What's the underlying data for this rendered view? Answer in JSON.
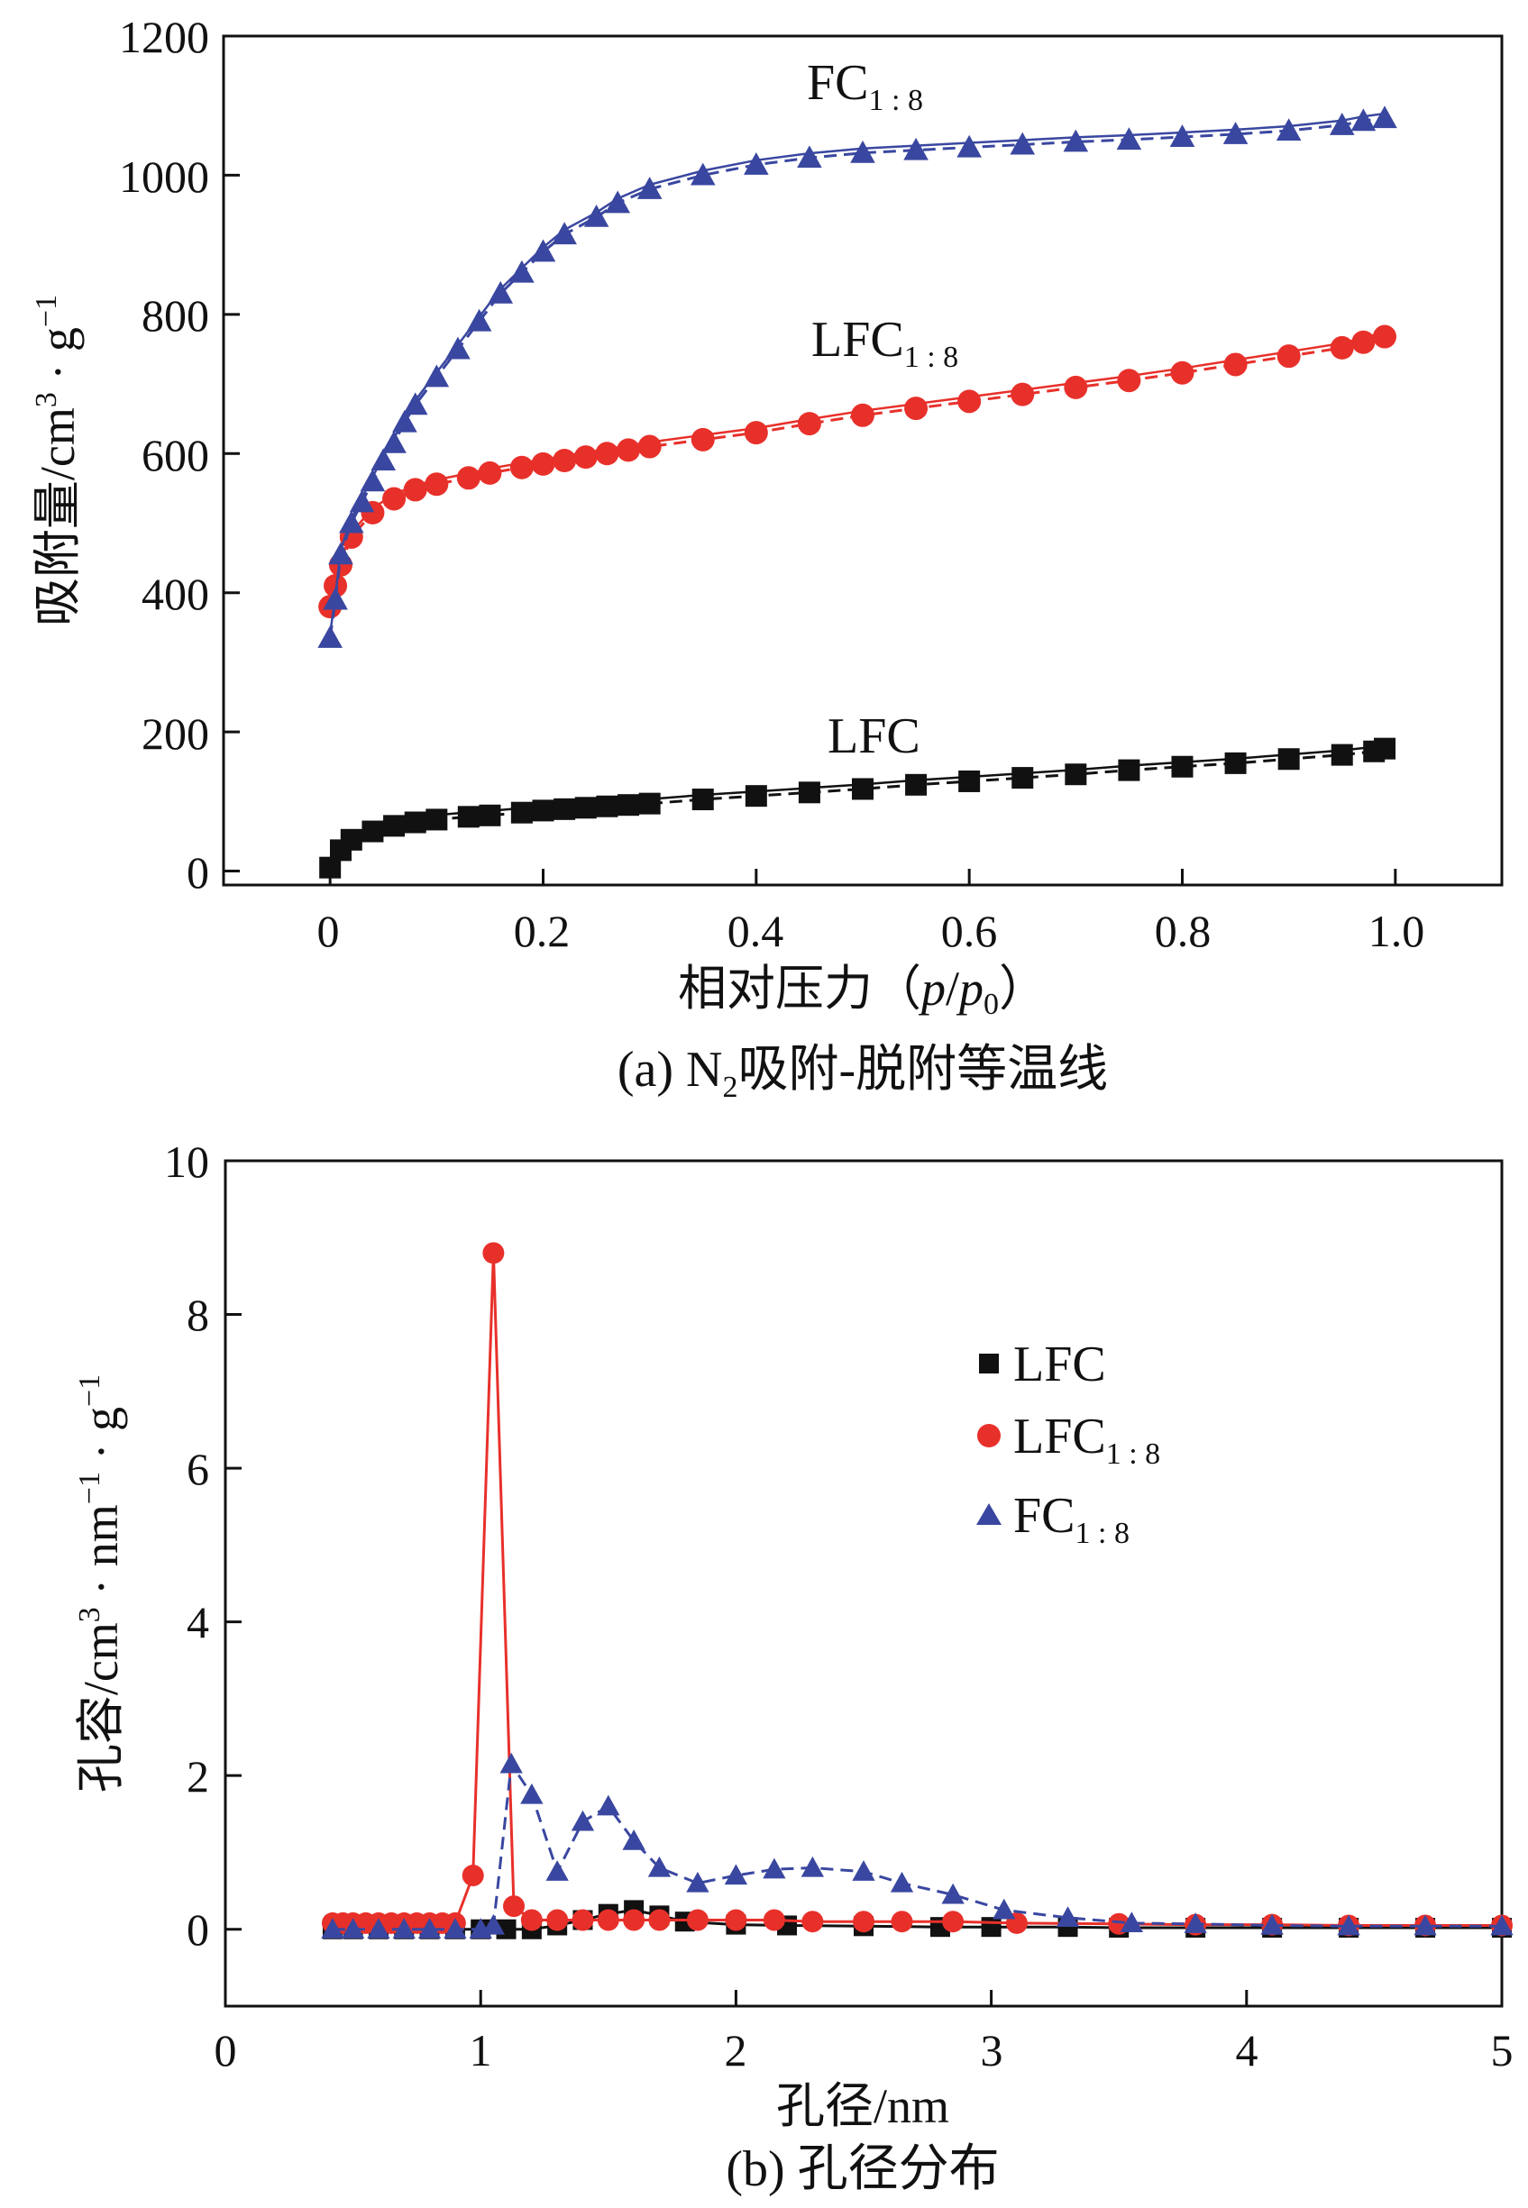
{
  "chart_data": [
    {
      "type": "line",
      "panel": "a",
      "caption_prefix": "(a) N",
      "caption_sub": "2",
      "caption_rest": "吸附-脱附等温线",
      "xlabel_prefix": "相对压力（",
      "xlabel_var1": "p",
      "xlabel_slash": "/",
      "xlabel_var2": "p",
      "xlabel_sub": "0",
      "xlabel_suffix": "）",
      "ylabel_main": "吸附量/cm",
      "ylabel_sup1": "3",
      "ylabel_mid": " · g",
      "ylabel_sup2": "−1",
      "xlim": [
        -0.1,
        1.1
      ],
      "ylim": [
        -20,
        1200
      ],
      "xticks": [
        "0",
        "0.2",
        "0.4",
        "0.6",
        "0.8",
        "1.0"
      ],
      "yticks": [
        "0",
        "200",
        "400",
        "600",
        "800",
        "1000",
        "1200"
      ],
      "series": [
        {
          "name": "LFC",
          "label_main": "LFC",
          "label_sub": "",
          "color": "#111111",
          "marker": "square",
          "x": [
            0.0,
            0.01,
            0.02,
            0.04,
            0.06,
            0.08,
            0.1,
            0.13,
            0.15,
            0.18,
            0.2,
            0.22,
            0.24,
            0.26,
            0.28,
            0.3,
            0.35,
            0.4,
            0.45,
            0.5,
            0.55,
            0.6,
            0.65,
            0.7,
            0.75,
            0.8,
            0.85,
            0.9,
            0.95,
            0.98,
            0.99
          ],
          "y": [
            5,
            30,
            45,
            57,
            65,
            70,
            74,
            78,
            80,
            84,
            87,
            89,
            91,
            93,
            95,
            97,
            103,
            108,
            113,
            118,
            124,
            129,
            134,
            139,
            145,
            150,
            155,
            161,
            167,
            172,
            176
          ]
        },
        {
          "name": "LFC1:8",
          "label_main": "LFC",
          "label_sub": "1 : 8",
          "color": "#e8302a",
          "marker": "circle",
          "x": [
            0.0,
            0.005,
            0.01,
            0.02,
            0.04,
            0.06,
            0.08,
            0.1,
            0.13,
            0.15,
            0.18,
            0.2,
            0.22,
            0.24,
            0.26,
            0.28,
            0.3,
            0.35,
            0.4,
            0.45,
            0.5,
            0.55,
            0.6,
            0.65,
            0.7,
            0.75,
            0.8,
            0.85,
            0.9,
            0.95,
            0.97,
            0.99
          ],
          "y": [
            380,
            410,
            440,
            480,
            515,
            535,
            548,
            556,
            565,
            572,
            580,
            585,
            590,
            595,
            600,
            605,
            610,
            620,
            630,
            643,
            655,
            665,
            675,
            685,
            695,
            705,
            716,
            728,
            740,
            752,
            760,
            768
          ]
        },
        {
          "name": "FC1:8",
          "label_main": "FC",
          "label_sub": "1 : 8",
          "color": "#3a47a0",
          "marker": "triangle",
          "x": [
            0.0,
            0.005,
            0.01,
            0.02,
            0.03,
            0.04,
            0.05,
            0.06,
            0.07,
            0.08,
            0.1,
            0.12,
            0.14,
            0.16,
            0.18,
            0.2,
            0.22,
            0.25,
            0.27,
            0.3,
            0.35,
            0.4,
            0.45,
            0.5,
            0.55,
            0.6,
            0.65,
            0.7,
            0.75,
            0.8,
            0.85,
            0.9,
            0.95,
            0.97,
            0.99
          ],
          "y": [
            335,
            390,
            455,
            500,
            530,
            560,
            590,
            615,
            645,
            670,
            710,
            750,
            790,
            830,
            860,
            890,
            915,
            940,
            960,
            980,
            1000,
            1015,
            1025,
            1032,
            1036,
            1040,
            1044,
            1048,
            1051,
            1055,
            1059,
            1064,
            1072,
            1078,
            1082
          ]
        }
      ],
      "annotations": [
        "FC1:8",
        "LFC1:8",
        "LFC"
      ]
    },
    {
      "type": "line",
      "panel": "b",
      "caption": "(b) 孔径分布",
      "xlabel": "孔径/nm",
      "ylabel_main": "孔容/cm",
      "ylabel_sup1": "3",
      "ylabel_mid": " · nm",
      "ylabel_sup2": "−1",
      "ylabel_mid2": " · g",
      "ylabel_sup3": "−1",
      "xlim": [
        0,
        5
      ],
      "ylim": [
        -1,
        10
      ],
      "xticks": [
        "0",
        "1",
        "2",
        "3",
        "4",
        "5"
      ],
      "yticks": [
        "0",
        "2",
        "4",
        "6",
        "8",
        "10"
      ],
      "legend_position": "upper-right",
      "series": [
        {
          "name": "LFC",
          "label_main": "LFC",
          "label_sub": "",
          "color": "#111111",
          "marker": "square",
          "x": [
            0.42,
            0.5,
            0.6,
            0.7,
            0.8,
            0.9,
            1.0,
            1.1,
            1.2,
            1.3,
            1.4,
            1.5,
            1.6,
            1.7,
            1.8,
            2.0,
            2.2,
            2.5,
            2.8,
            3.0,
            3.3,
            3.5,
            3.8,
            4.1,
            4.4,
            4.7,
            5.0
          ],
          "y": [
            0.0,
            0.0,
            0.0,
            0.0,
            0.0,
            0.0,
            0.0,
            0.0,
            0.0,
            0.05,
            0.12,
            0.2,
            0.25,
            0.18,
            0.1,
            0.06,
            0.05,
            0.04,
            0.03,
            0.03,
            0.03,
            0.02,
            0.02,
            0.02,
            0.02,
            0.02,
            0.02
          ]
        },
        {
          "name": "LFC1:8",
          "label_main": "LFC",
          "label_sub": "1 : 8",
          "color": "#e8302a",
          "marker": "circle",
          "x": [
            0.42,
            0.46,
            0.5,
            0.55,
            0.6,
            0.65,
            0.7,
            0.75,
            0.8,
            0.85,
            0.9,
            0.97,
            1.05,
            1.13,
            1.2,
            1.3,
            1.4,
            1.5,
            1.6,
            1.7,
            1.85,
            2.0,
            2.15,
            2.3,
            2.5,
            2.65,
            2.85,
            3.1,
            3.5,
            3.8,
            4.1,
            4.4,
            4.7,
            5.0
          ],
          "y": [
            0.08,
            0.08,
            0.08,
            0.08,
            0.08,
            0.08,
            0.08,
            0.08,
            0.08,
            0.08,
            0.08,
            0.7,
            8.8,
            0.3,
            0.12,
            0.12,
            0.12,
            0.12,
            0.12,
            0.12,
            0.12,
            0.12,
            0.12,
            0.1,
            0.1,
            0.1,
            0.1,
            0.08,
            0.07,
            0.06,
            0.06,
            0.05,
            0.05,
            0.05
          ]
        },
        {
          "name": "FC1:8",
          "label_main": "FC",
          "label_sub": "1 : 8",
          "color": "#3a47a0",
          "marker": "triangle",
          "x": [
            0.42,
            0.5,
            0.6,
            0.7,
            0.8,
            0.9,
            1.0,
            1.05,
            1.12,
            1.2,
            1.3,
            1.4,
            1.5,
            1.6,
            1.7,
            1.85,
            2.0,
            2.15,
            2.3,
            2.5,
            2.65,
            2.85,
            3.05,
            3.3,
            3.55,
            3.8,
            4.1,
            4.4,
            4.7,
            5.0
          ],
          "y": [
            0.0,
            0.0,
            0.0,
            0.0,
            0.0,
            0.0,
            0.0,
            0.05,
            2.15,
            1.75,
            0.75,
            1.4,
            1.6,
            1.15,
            0.8,
            0.6,
            0.7,
            0.78,
            0.8,
            0.75,
            0.6,
            0.45,
            0.25,
            0.15,
            0.08,
            0.07,
            0.05,
            0.04,
            0.04,
            0.04
          ]
        }
      ]
    }
  ]
}
